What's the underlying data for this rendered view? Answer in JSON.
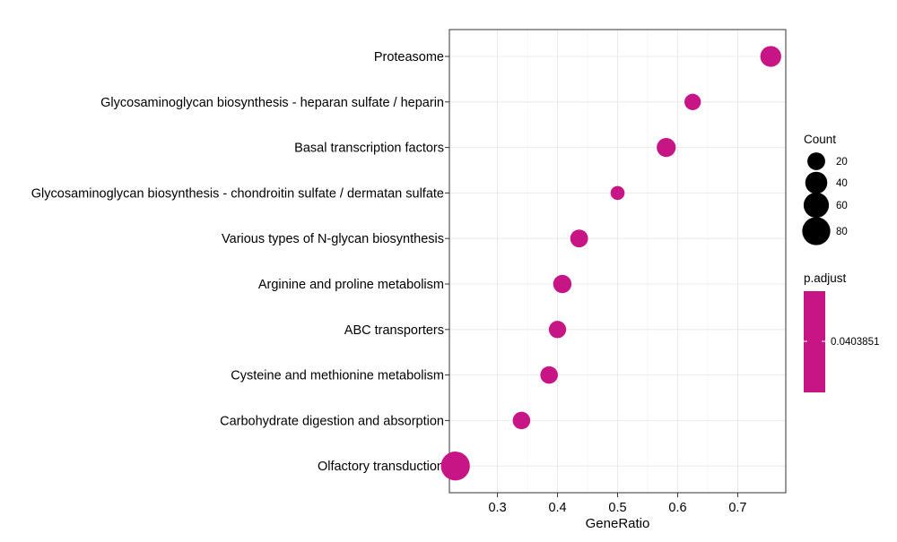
{
  "chart_data": {
    "type": "scatter",
    "title": "",
    "xlabel": "GeneRatio",
    "ylabel": "",
    "xlim": [
      0.22,
      0.78
    ],
    "x_ticks": [
      0.3,
      0.4,
      0.5,
      0.6,
      0.7
    ],
    "x_tick_labels": [
      "0.3",
      "0.4",
      "0.5",
      "0.6",
      "0.7"
    ],
    "grid": true,
    "categories": [
      "Proteasome",
      "Glycosaminoglycan biosynthesis - heparan sulfate / heparin",
      "Basal transcription factors",
      "Glycosaminoglycan biosynthesis - chondroitin sulfate / dermatan sulfate",
      "Various types of N-glycan biosynthesis",
      "Arginine and proline metabolism",
      "ABC transporters",
      "Cysteine and methionine metabolism",
      "Carbohydrate digestion and absorption",
      "Olfactory transduction"
    ],
    "points": [
      {
        "term": "Proteasome",
        "gene_ratio": 0.755,
        "count": 34,
        "p_adjust": 0.0403851
      },
      {
        "term": "Glycosaminoglycan biosynthesis - heparan sulfate / heparin",
        "gene_ratio": 0.625,
        "count": 15,
        "p_adjust": 0.0403851
      },
      {
        "term": "Basal transcription factors",
        "gene_ratio": 0.581,
        "count": 25,
        "p_adjust": 0.0403851
      },
      {
        "term": "Glycosaminoglycan biosynthesis - chondroitin sulfate / dermatan sulfate",
        "gene_ratio": 0.5,
        "count": 8,
        "p_adjust": 0.0403851
      },
      {
        "term": "Various types of N-glycan biosynthesis",
        "gene_ratio": 0.436,
        "count": 20,
        "p_adjust": 0.0403851
      },
      {
        "term": "Arginine and proline metabolism",
        "gene_ratio": 0.408,
        "count": 22,
        "p_adjust": 0.0403851
      },
      {
        "term": "ABC transporters",
        "gene_ratio": 0.4,
        "count": 18,
        "p_adjust": 0.0403851
      },
      {
        "term": "Cysteine and methionine metabolism",
        "gene_ratio": 0.386,
        "count": 19,
        "p_adjust": 0.0403851
      },
      {
        "term": "Carbohydrate digestion and absorption",
        "gene_ratio": 0.34,
        "count": 19,
        "p_adjust": 0.0403851
      },
      {
        "term": "Olfactory transduction",
        "gene_ratio": 0.23,
        "count": 87,
        "p_adjust": 0.0403851
      }
    ],
    "size_legend": {
      "title": "Count",
      "values": [
        20,
        40,
        60,
        80
      ],
      "labels": [
        "20",
        "40",
        "60",
        "80"
      ]
    },
    "color_legend": {
      "title": "p.adjust",
      "labels": [
        "0.0403851"
      ]
    },
    "point_color": "#C71585",
    "legend_position": "right"
  }
}
